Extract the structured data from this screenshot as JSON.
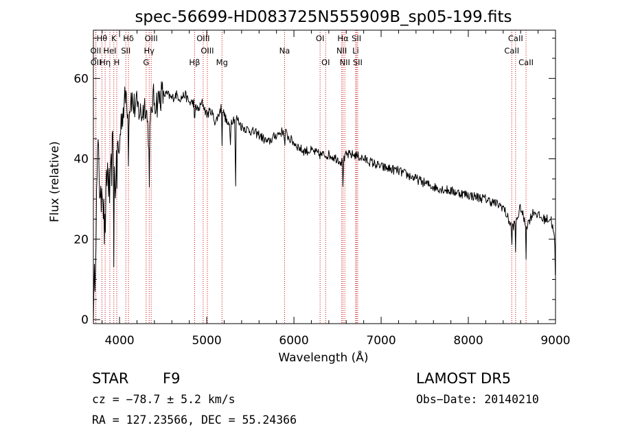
{
  "chart_data": {
    "type": "line",
    "title": "spec-56699-HD083725N555909B_sp05-199.fits",
    "xlabel": "Wavelength (Å)",
    "ylabel": "Flux (relative)",
    "xlim": [
      3700,
      9000
    ],
    "ylim": [
      -1,
      72
    ],
    "x_ticks": [
      4000,
      5000,
      6000,
      7000,
      8000,
      9000
    ],
    "x_tick_labels": [
      "4000",
      "5000",
      "6000",
      "7000",
      "8000",
      "9000"
    ],
    "y_ticks": [
      0,
      20,
      40,
      60
    ],
    "y_tick_labels": [
      "0",
      "20",
      "40",
      "60"
    ],
    "grid": false,
    "legend": "none",
    "line_color": "#000000",
    "marker_color": "#cc0000",
    "spectrum_anchor_points": {
      "x": [
        3700,
        3720,
        3740,
        3760,
        3780,
        3800,
        3830,
        3860,
        3890,
        3920,
        3950,
        3970,
        3990,
        4020,
        4050,
        4080,
        4100,
        4130,
        4160,
        4200,
        4250,
        4300,
        4340,
        4380,
        4430,
        4480,
        4550,
        4600,
        4650,
        4700,
        4750,
        4800,
        4860,
        4900,
        4950,
        5000,
        5050,
        5100,
        5170,
        5200,
        5250,
        5300,
        5350,
        5400,
        5500,
        5600,
        5700,
        5800,
        5890,
        5950,
        6000,
        6100,
        6200,
        6300,
        6400,
        6500,
        6563,
        6600,
        6700,
        6800,
        6900,
        7000,
        7200,
        7400,
        7600,
        7800,
        8000,
        8200,
        8400,
        8498,
        8542,
        8600,
        8662,
        8750,
        8850,
        8950,
        8990,
        9000
      ],
      "y": [
        0,
        14,
        33,
        45,
        25,
        37,
        20,
        38,
        30,
        43,
        32,
        45,
        40,
        50,
        53,
        57,
        49,
        56,
        53,
        53,
        51,
        54,
        44,
        55,
        54,
        56,
        56,
        55,
        56,
        55,
        56,
        54,
        54,
        52,
        54,
        51,
        52,
        49,
        53,
        51,
        48,
        50,
        50,
        48,
        47,
        46,
        44,
        46,
        47,
        45,
        44,
        42,
        42,
        41,
        41,
        40,
        39,
        41,
        41,
        40,
        39,
        38,
        37,
        35,
        33,
        32,
        31,
        30,
        28,
        23,
        24,
        28,
        23,
        27,
        25,
        25,
        20,
        8
      ]
    },
    "spectral_lines": [
      {
        "label": "Hθ",
        "x": 3798,
        "row": 0
      },
      {
        "label": "K",
        "x": 3934,
        "row": 0
      },
      {
        "label": "Hδ",
        "x": 4102,
        "row": 0
      },
      {
        "label": "OIII",
        "x": 4363,
        "row": 0
      },
      {
        "label": "OIII",
        "x": 4959,
        "row": 0
      },
      {
        "label": "OI",
        "x": 6300,
        "row": 0
      },
      {
        "label": "Hα",
        "x": 6563,
        "row": 0
      },
      {
        "label": "SII",
        "x": 6717,
        "row": 0
      },
      {
        "label": "CaII",
        "x": 8542,
        "row": 0
      },
      {
        "label": "OII",
        "x": 3727,
        "row": 1
      },
      {
        "label": "HeI",
        "x": 3889,
        "row": 1
      },
      {
        "label": "SII",
        "x": 4072,
        "row": 1
      },
      {
        "label": "Hγ",
        "x": 4340,
        "row": 1
      },
      {
        "label": "OIII",
        "x": 5007,
        "row": 1
      },
      {
        "label": "Na",
        "x": 5893,
        "row": 1
      },
      {
        "label": "NII",
        "x": 6548,
        "row": 1
      },
      {
        "label": "Li",
        "x": 6708,
        "row": 1
      },
      {
        "label": "CaII",
        "x": 8498,
        "row": 1
      },
      {
        "label": "OII",
        "x": 3729,
        "row": 2
      },
      {
        "label": "Hη",
        "x": 3835,
        "row": 2
      },
      {
        "label": "H",
        "x": 3968,
        "row": 2
      },
      {
        "label": "G",
        "x": 4305,
        "row": 2
      },
      {
        "label": "Hβ",
        "x": 4861,
        "row": 2
      },
      {
        "label": "Mg",
        "x": 5175,
        "row": 2
      },
      {
        "label": "OI",
        "x": 6364,
        "row": 2
      },
      {
        "label": "NII",
        "x": 6584,
        "row": 2
      },
      {
        "label": "SII",
        "x": 6731,
        "row": 2
      },
      {
        "label": "CaII",
        "x": 8662,
        "row": 2
      }
    ]
  },
  "info": {
    "class": "STAR",
    "subclass": "F9",
    "survey": "LAMOST DR5",
    "cz": "cz = −78.7 ± 5.2 km/s",
    "obs_date": "Obs−Date: 20140210",
    "radec": "RA = 127.23566, DEC =  55.24366"
  }
}
